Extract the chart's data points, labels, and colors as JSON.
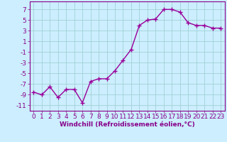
{
  "x": [
    0,
    1,
    2,
    3,
    4,
    5,
    6,
    7,
    8,
    9,
    10,
    11,
    12,
    13,
    14,
    15,
    16,
    17,
    18,
    19,
    20,
    21,
    22,
    23
  ],
  "y": [
    -8.5,
    -9,
    -7.5,
    -9.5,
    -8,
    -8,
    -10.5,
    -6.5,
    -6,
    -6,
    -4.5,
    -2.5,
    -0.5,
    4,
    5,
    5.2,
    7,
    7,
    6.5,
    4.5,
    4,
    4,
    3.5,
    3.5
  ],
  "line_color": "#990099",
  "marker": "+",
  "marker_size": 4,
  "bg_color": "#cceeff",
  "grid_color": "#99cccc",
  "xlabel": "Windchill (Refroidissement éolien,°C)",
  "xlim": [
    -0.5,
    23.5
  ],
  "ylim": [
    -12,
    8.5
  ],
  "yticks": [
    -11,
    -9,
    -7,
    -5,
    -3,
    -1,
    1,
    3,
    5,
    7
  ],
  "xticks": [
    0,
    1,
    2,
    3,
    4,
    5,
    6,
    7,
    8,
    9,
    10,
    11,
    12,
    13,
    14,
    15,
    16,
    17,
    18,
    19,
    20,
    21,
    22,
    23
  ],
  "tick_label_color": "#880088",
  "xlabel_color": "#880088",
  "xlabel_fontsize": 6.5,
  "tick_fontsize": 6.5,
  "line_width": 1.0,
  "marker_color": "#990099"
}
